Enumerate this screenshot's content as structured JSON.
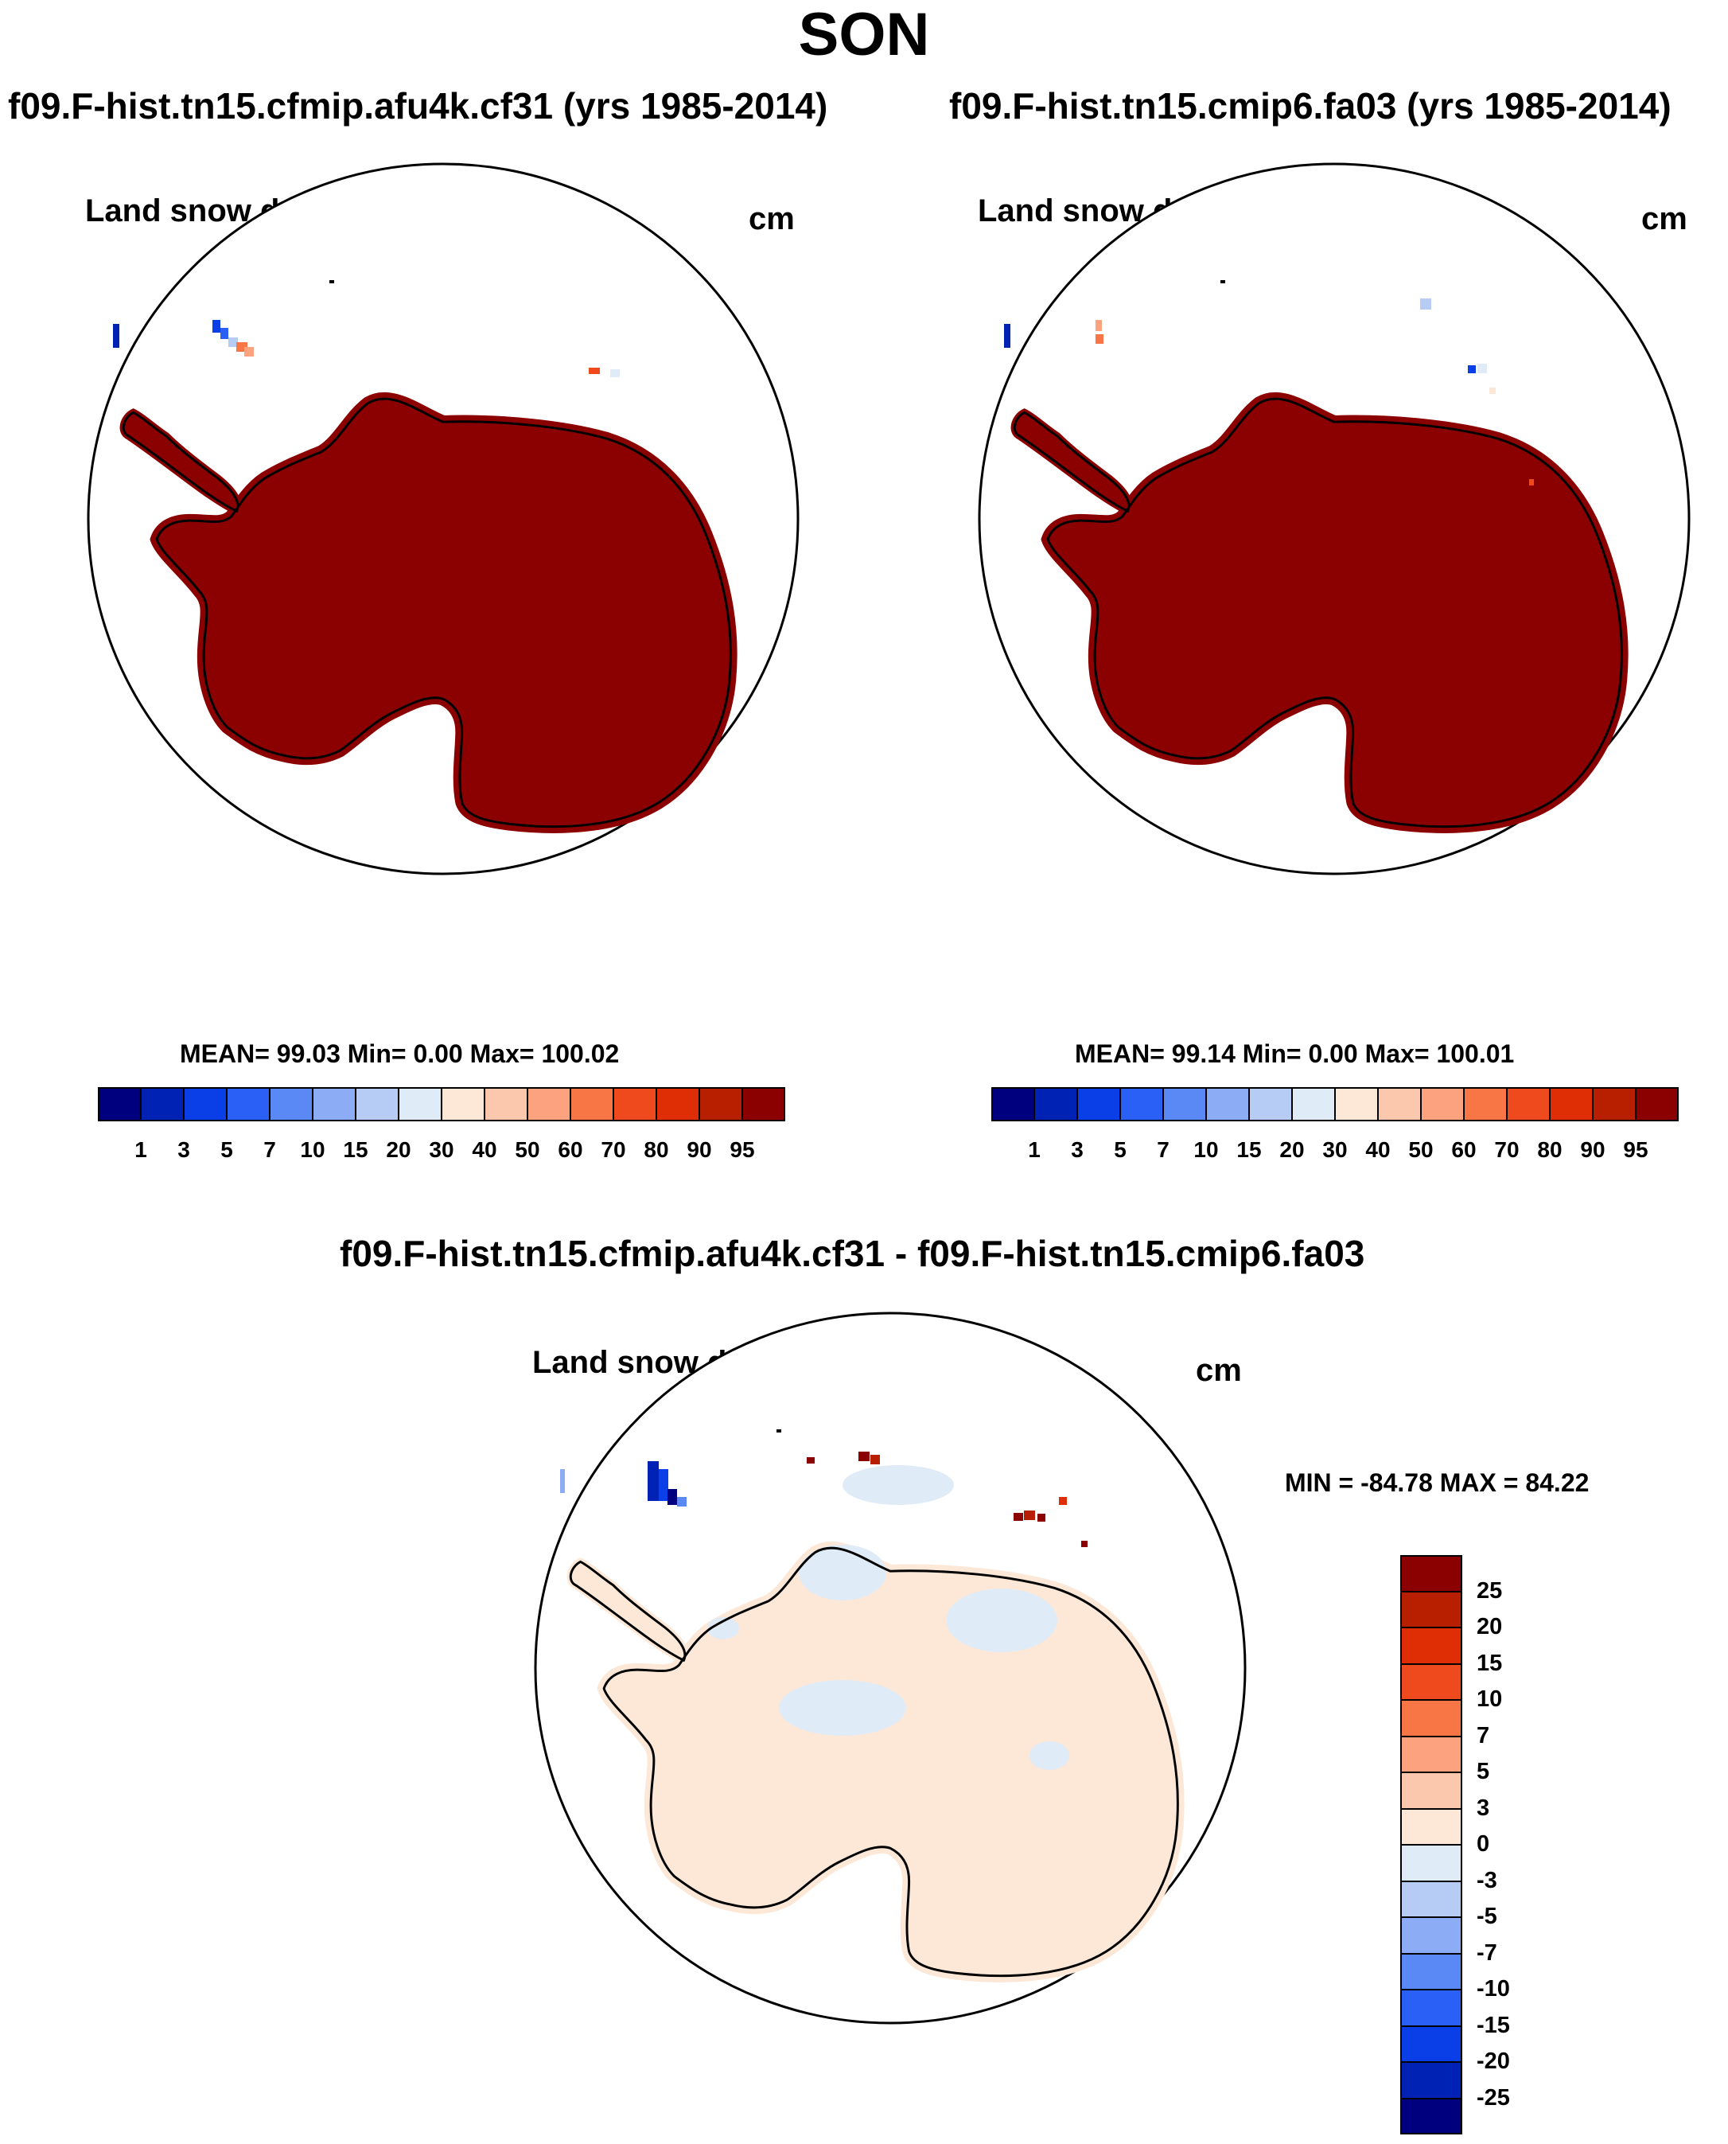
{
  "main_title": "SON",
  "panels": [
    {
      "case_title": "f09.F-hist.tn15.cfmip.afu4k.cf31 (yrs 1985-2014)",
      "var_title": "Land snow depth water equiv",
      "units": "cm",
      "stats": "MEAN=  99.03  Min=    0.00  Max= 100.02"
    },
    {
      "case_title": "f09.F-hist.tn15.cmip6.fa03 (yrs 1985-2014)",
      "var_title": "Land snow depth water equiv",
      "units": "cm",
      "stats": "MEAN=  99.14  Min=    0.00  Max= 100.01"
    }
  ],
  "diff_panel": {
    "case_title": "f09.F-hist.tn15.cfmip.afu4k.cf31 - f09.F-hist.tn15.cmip6.fa03",
    "var_title": "Land snow depth water equiv",
    "units": "cm",
    "stats": "MIN = -84.78 MAX =  84.22"
  },
  "colorbars": {
    "abs_levels": [
      "1",
      "3",
      "5",
      "7",
      "10",
      "15",
      "20",
      "30",
      "40",
      "50",
      "60",
      "70",
      "80",
      "90",
      "95"
    ],
    "abs_colors": [
      "#00007f",
      "#0022b4",
      "#0a3ee6",
      "#2a60f5",
      "#5a88f5",
      "#8cadf5",
      "#b6ccf5",
      "#dfebf7",
      "#fde8d8",
      "#fcc8ad",
      "#fca27e",
      "#f87646",
      "#ef4a1e",
      "#df2e06",
      "#b81f00",
      "#8b0000"
    ],
    "diff_levels": [
      "25",
      "20",
      "15",
      "10",
      "7",
      "5",
      "3",
      "0",
      "-3",
      "-5",
      "-7",
      "-10",
      "-15",
      "-20",
      "-25"
    ],
    "diff_colors": [
      "#8b0000",
      "#b81f00",
      "#df2e06",
      "#ef4a1e",
      "#f87646",
      "#fca27e",
      "#fcc8ad",
      "#fde8d8",
      "#dfebf7",
      "#b6ccf5",
      "#8cadf5",
      "#5a88f5",
      "#2a60f5",
      "#0a3ee6",
      "#0022b4",
      "#00007f"
    ]
  },
  "map_colors": {
    "abs_land": "#8b0000",
    "diff_land": "#fde8d8",
    "diff_neg": "#dfebf7",
    "coast": "#000000"
  }
}
